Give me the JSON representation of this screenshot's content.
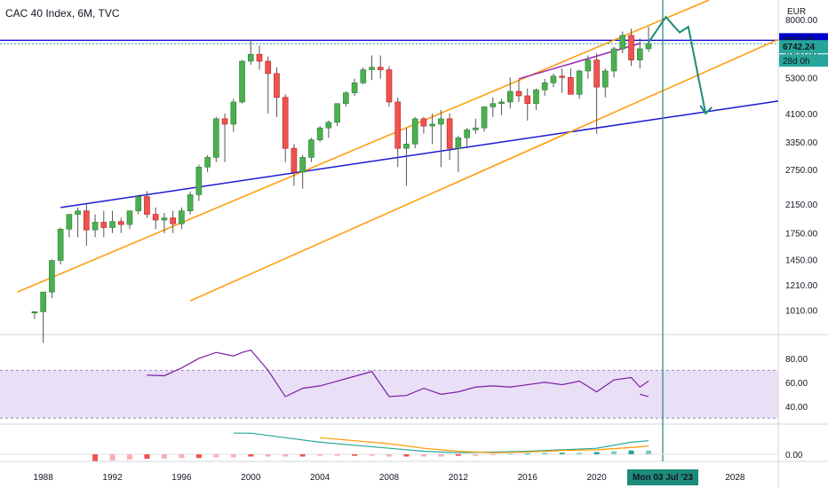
{
  "header": {
    "title": "CAC 40 Index, 6M, TVC"
  },
  "price_axis": {
    "currency": "EUR",
    "ticks": [
      "8000.00",
      "6300.00",
      "5300.00",
      "4100.00",
      "3350.00",
      "2750.00",
      "2150.00",
      "1750.00",
      "1450.00",
      "1210.00",
      "1010.00"
    ]
  },
  "time_axis": {
    "ticks": [
      "1988",
      "1992",
      "1996",
      "2000",
      "2004",
      "2008",
      "2012",
      "2016",
      "2020",
      "2028"
    ],
    "cursor_label": "Mon 03 Jul '23"
  },
  "price_labels": {
    "level": "6907.82",
    "last": "6742.24",
    "countdown": "28d 0h"
  },
  "rsi_axis": {
    "ticks": [
      "80.00",
      "60.00",
      "40.00"
    ]
  },
  "macd_axis": {
    "ticks": [
      "0.00"
    ]
  },
  "colors": {
    "up": "#26a69a",
    "down": "#ef5350",
    "candle_up": "#4caf50",
    "horizontal_line": "#0000cc",
    "trend_line": "#1a1ad6",
    "channel": "#ff9800",
    "arrow": "#1d8a7a",
    "rsi": "#7b1fa2",
    "rsi_band": "#e9dff7",
    "macd": "#26a69a",
    "signal": "#ff9800"
  },
  "chart_data": {
    "type": "candlestick",
    "title": "CAC 40 Index, 6M, TVC",
    "currency": "EUR",
    "timeframe": "6M",
    "x": [
      1987.5,
      1988.0,
      1988.5,
      1989.0,
      1989.5,
      1990.0,
      1990.5,
      1991.0,
      1991.5,
      1992.0,
      1992.5,
      1993.0,
      1993.5,
      1994.0,
      1994.5,
      1995.0,
      1995.5,
      1996.0,
      1996.5,
      1997.0,
      1997.5,
      1998.0,
      1998.5,
      1999.0,
      1999.5,
      2000.0,
      2000.5,
      2001.0,
      2001.5,
      2002.0,
      2002.5,
      2003.0,
      2003.5,
      2004.0,
      2004.5,
      2005.0,
      2005.5,
      2006.0,
      2006.5,
      2007.0,
      2007.5,
      2008.0,
      2008.5,
      2009.0,
      2009.5,
      2010.0,
      2010.5,
      2011.0,
      2011.5,
      2012.0,
      2012.5,
      2013.0,
      2013.5,
      2014.0,
      2014.5,
      2015.0,
      2015.5,
      2016.0,
      2016.5,
      2017.0,
      2017.5,
      2018.0,
      2018.5,
      2019.0,
      2019.5,
      2020.0,
      2020.5,
      2021.0,
      2021.5,
      2022.0,
      2022.5,
      2023.0
    ],
    "open": [
      1000,
      1000,
      1150,
      1440,
      1800,
      2000,
      2050,
      1790,
      1890,
      1820,
      1900,
      1860,
      2050,
      2270,
      2000,
      1920,
      1950,
      1870,
      2050,
      2300,
      2800,
      3000,
      3950,
      3800,
      4450,
      5950,
      6250,
      5950,
      5450,
      4600,
      3200,
      2700,
      3000,
      3400,
      3700,
      3850,
      4400,
      4750,
      5100,
      5600,
      5700,
      5600,
      4450,
      3200,
      3300,
      3950,
      3750,
      3800,
      3950,
      3200,
      3450,
      3650,
      3700,
      4300,
      4400,
      4450,
      4800,
      4650,
      4400,
      4850,
      5100,
      5350,
      5300,
      4700,
      5550,
      6000,
      4950,
      5550,
      6500,
      7150,
      6000,
      6500
    ],
    "high": [
      1000,
      1100,
      1450,
      1820,
      2000,
      2100,
      2150,
      2000,
      2050,
      2050,
      1950,
      2050,
      2300,
      2360,
      2100,
      2020,
      2050,
      2100,
      2350,
      2850,
      3050,
      4000,
      4100,
      4550,
      6000,
      6950,
      6650,
      6150,
      5700,
      4700,
      3300,
      3050,
      3450,
      3750,
      3900,
      4400,
      4800,
      5250,
      5700,
      6200,
      6200,
      5750,
      4600,
      3700,
      4000,
      4000,
      4100,
      4200,
      4100,
      3500,
      3700,
      3950,
      4300,
      4600,
      4550,
      5300,
      5200,
      4900,
      4900,
      5250,
      5450,
      5650,
      5650,
      5600,
      6200,
      6300,
      5650,
      6600,
      7350,
      7500,
      7000,
      7600
    ],
    "low": [
      950,
      800,
      1100,
      1400,
      1700,
      1700,
      1600,
      1700,
      1700,
      1750,
      1750,
      1800,
      2000,
      1950,
      1800,
      1750,
      1750,
      1800,
      2000,
      2200,
      2700,
      2900,
      2900,
      3600,
      4400,
      5800,
      5600,
      4100,
      4000,
      2900,
      2450,
      2400,
      2900,
      3350,
      3450,
      3750,
      4300,
      4650,
      5050,
      5200,
      5250,
      4300,
      2800,
      2450,
      3200,
      3550,
      3300,
      2800,
      2950,
      2700,
      3200,
      3550,
      3600,
      4000,
      4050,
      4250,
      4450,
      3900,
      4200,
      4650,
      4950,
      4750,
      4700,
      4550,
      5250,
      3550,
      4600,
      5300,
      6300,
      5750,
      5650,
      6350
    ],
    "close": [
      1000,
      1150,
      1440,
      1800,
      2000,
      2050,
      1790,
      1890,
      1820,
      1900,
      1860,
      2050,
      2270,
      2000,
      1920,
      1950,
      1870,
      2050,
      2300,
      2800,
      3000,
      3950,
      3800,
      4450,
      5950,
      6250,
      5950,
      5450,
      4600,
      3200,
      2700,
      3000,
      3400,
      3700,
      3850,
      4400,
      4750,
      5100,
      5600,
      5700,
      5600,
      4450,
      3200,
      3300,
      3950,
      3750,
      3800,
      3950,
      3200,
      3450,
      3650,
      3700,
      4300,
      4400,
      4450,
      4800,
      4650,
      4400,
      4850,
      5100,
      5350,
      5300,
      4700,
      5550,
      6000,
      4950,
      5550,
      6500,
      7150,
      6000,
      6500,
      6742.24
    ],
    "yscale": "log",
    "ylim": [
      850,
      9200
    ],
    "xlim": [
      1985.5,
      2030.5
    ],
    "horizontal_line": 6907.82,
    "last_price": 6742.24,
    "cursor_date": "Mon 03 Jul '23",
    "trend_line": [
      [
        1989.0,
        2100
      ],
      [
        2030.5,
        4480
      ]
    ],
    "channel_upper": [
      [
        1986.5,
        1150
      ],
      [
        2026.5,
        9200
      ]
    ],
    "channel_lower": [
      [
        1996.5,
        1080
      ],
      [
        2030.5,
        6950
      ]
    ],
    "wedge_line": [
      [
        2015.5,
        5250
      ],
      [
        2022.5,
        6750
      ]
    ],
    "projection_arrow": [
      [
        2023.0,
        6800
      ],
      [
        2024.0,
        8150
      ],
      [
        2024.8,
        7300
      ],
      [
        2025.3,
        7600
      ],
      [
        2026.3,
        4100
      ]
    ],
    "rsi": {
      "ylim": [
        25,
        100
      ],
      "band": [
        30,
        70
      ],
      "x": [
        1994.0,
        1995.0,
        1996.0,
        1997.0,
        1998.0,
        1999.0,
        1999.5,
        2000.0,
        2001.0,
        2002.0,
        2003.0,
        2004.0,
        2005.0,
        2006.0,
        2007.0,
        2008.0,
        2009.0,
        2010.0,
        2011.0,
        2012.0,
        2013.0,
        2014.0,
        2015.0,
        2016.0,
        2017.0,
        2018.0,
        2019.0,
        2020.0,
        2021.0,
        2022.0,
        2022.5,
        2023.0
      ],
      "values": [
        66,
        65.5,
        72,
        80,
        85,
        82,
        85,
        87,
        70,
        48,
        55,
        57,
        61,
        65,
        69,
        48,
        49,
        55,
        50,
        52,
        56,
        57,
        56,
        58,
        60,
        58,
        61,
        52,
        62,
        64,
        56,
        61
      ],
      "extra_segment": [
        [
          2022.5,
          50
        ],
        [
          2023.0,
          48
        ]
      ]
    },
    "macd": {
      "zero": 0,
      "macd_x": [
        1999.0,
        2000.0,
        2002.0,
        2004.0,
        2006.0,
        2008.0,
        2010.0,
        2012.0,
        2014.0,
        2016.0,
        2018.0,
        2020.0,
        2022.0,
        2023.0
      ],
      "macd_values": [
        28,
        28,
        22,
        16,
        12,
        8,
        4,
        2,
        3,
        4,
        6,
        8,
        16,
        18
      ],
      "signal_x": [
        2004.0,
        2006.0,
        2008.0,
        2010.0,
        2012.0,
        2014.0,
        2016.0,
        2018.0,
        2020.0,
        2022.0,
        2023.0
      ],
      "signal_values": [
        22,
        18,
        14,
        8,
        4,
        2,
        3,
        5,
        6,
        9,
        11
      ],
      "histogram_x": [
        1991,
        1992,
        1993,
        1994,
        1995,
        1996,
        1997,
        1998,
        1999,
        2000,
        2001,
        2002,
        2003,
        2004,
        2005,
        2006,
        2007,
        2008,
        2009,
        2010,
        2011,
        2012,
        2013,
        2014,
        2015,
        2016,
        2017,
        2018,
        2019,
        2020,
        2021,
        2022,
        2023
      ],
      "histogram": [
        -9,
        -8,
        -7,
        -6,
        -6,
        -5,
        -5,
        -4,
        -4,
        -3,
        -3,
        -3,
        -3,
        -2,
        -2,
        -2,
        -2,
        -3,
        -3,
        -3,
        -3,
        -2,
        -2,
        -1,
        1,
        1,
        2,
        2,
        2,
        3,
        4,
        5,
        5
      ]
    }
  }
}
